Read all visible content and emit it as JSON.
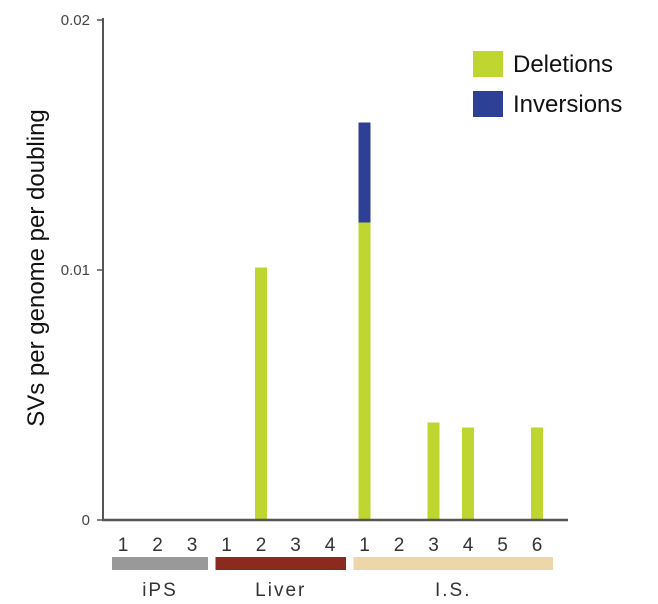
{
  "chart_data": {
    "type": "bar",
    "stacked": true,
    "ylabel": "SVs per genome per doubling",
    "ylim": [
      0,
      0.02
    ],
    "yticks": [
      {
        "value": 0,
        "label": "0"
      },
      {
        "value": 0.01,
        "label": "0.01"
      },
      {
        "value": 0.02,
        "label": "0.02"
      }
    ],
    "categories": [
      "1",
      "2",
      "3",
      "1",
      "2",
      "3",
      "4",
      "1",
      "2",
      "3",
      "4",
      "5",
      "6"
    ],
    "groups": [
      {
        "label": "iPS",
        "start": 0,
        "end": 2,
        "color": "#999999"
      },
      {
        "label": "Liver",
        "start": 3,
        "end": 6,
        "color": "#8b2a1f"
      },
      {
        "label": "I.S.",
        "start": 7,
        "end": 12,
        "color": "#ecd6aa"
      }
    ],
    "series": [
      {
        "name": "Deletions",
        "color": "#bfd630",
        "values": [
          0,
          0,
          0,
          0,
          0.0101,
          0,
          0,
          0.0119,
          0,
          0.0039,
          0.0037,
          0,
          0.0037
        ]
      },
      {
        "name": "Inversions",
        "color": "#2e3f96",
        "values": [
          0,
          0,
          0,
          0,
          0,
          0,
          0,
          0.004,
          0,
          0,
          0,
          0,
          0
        ]
      }
    ],
    "legend": {
      "position": "top-right"
    },
    "grid": false
  }
}
